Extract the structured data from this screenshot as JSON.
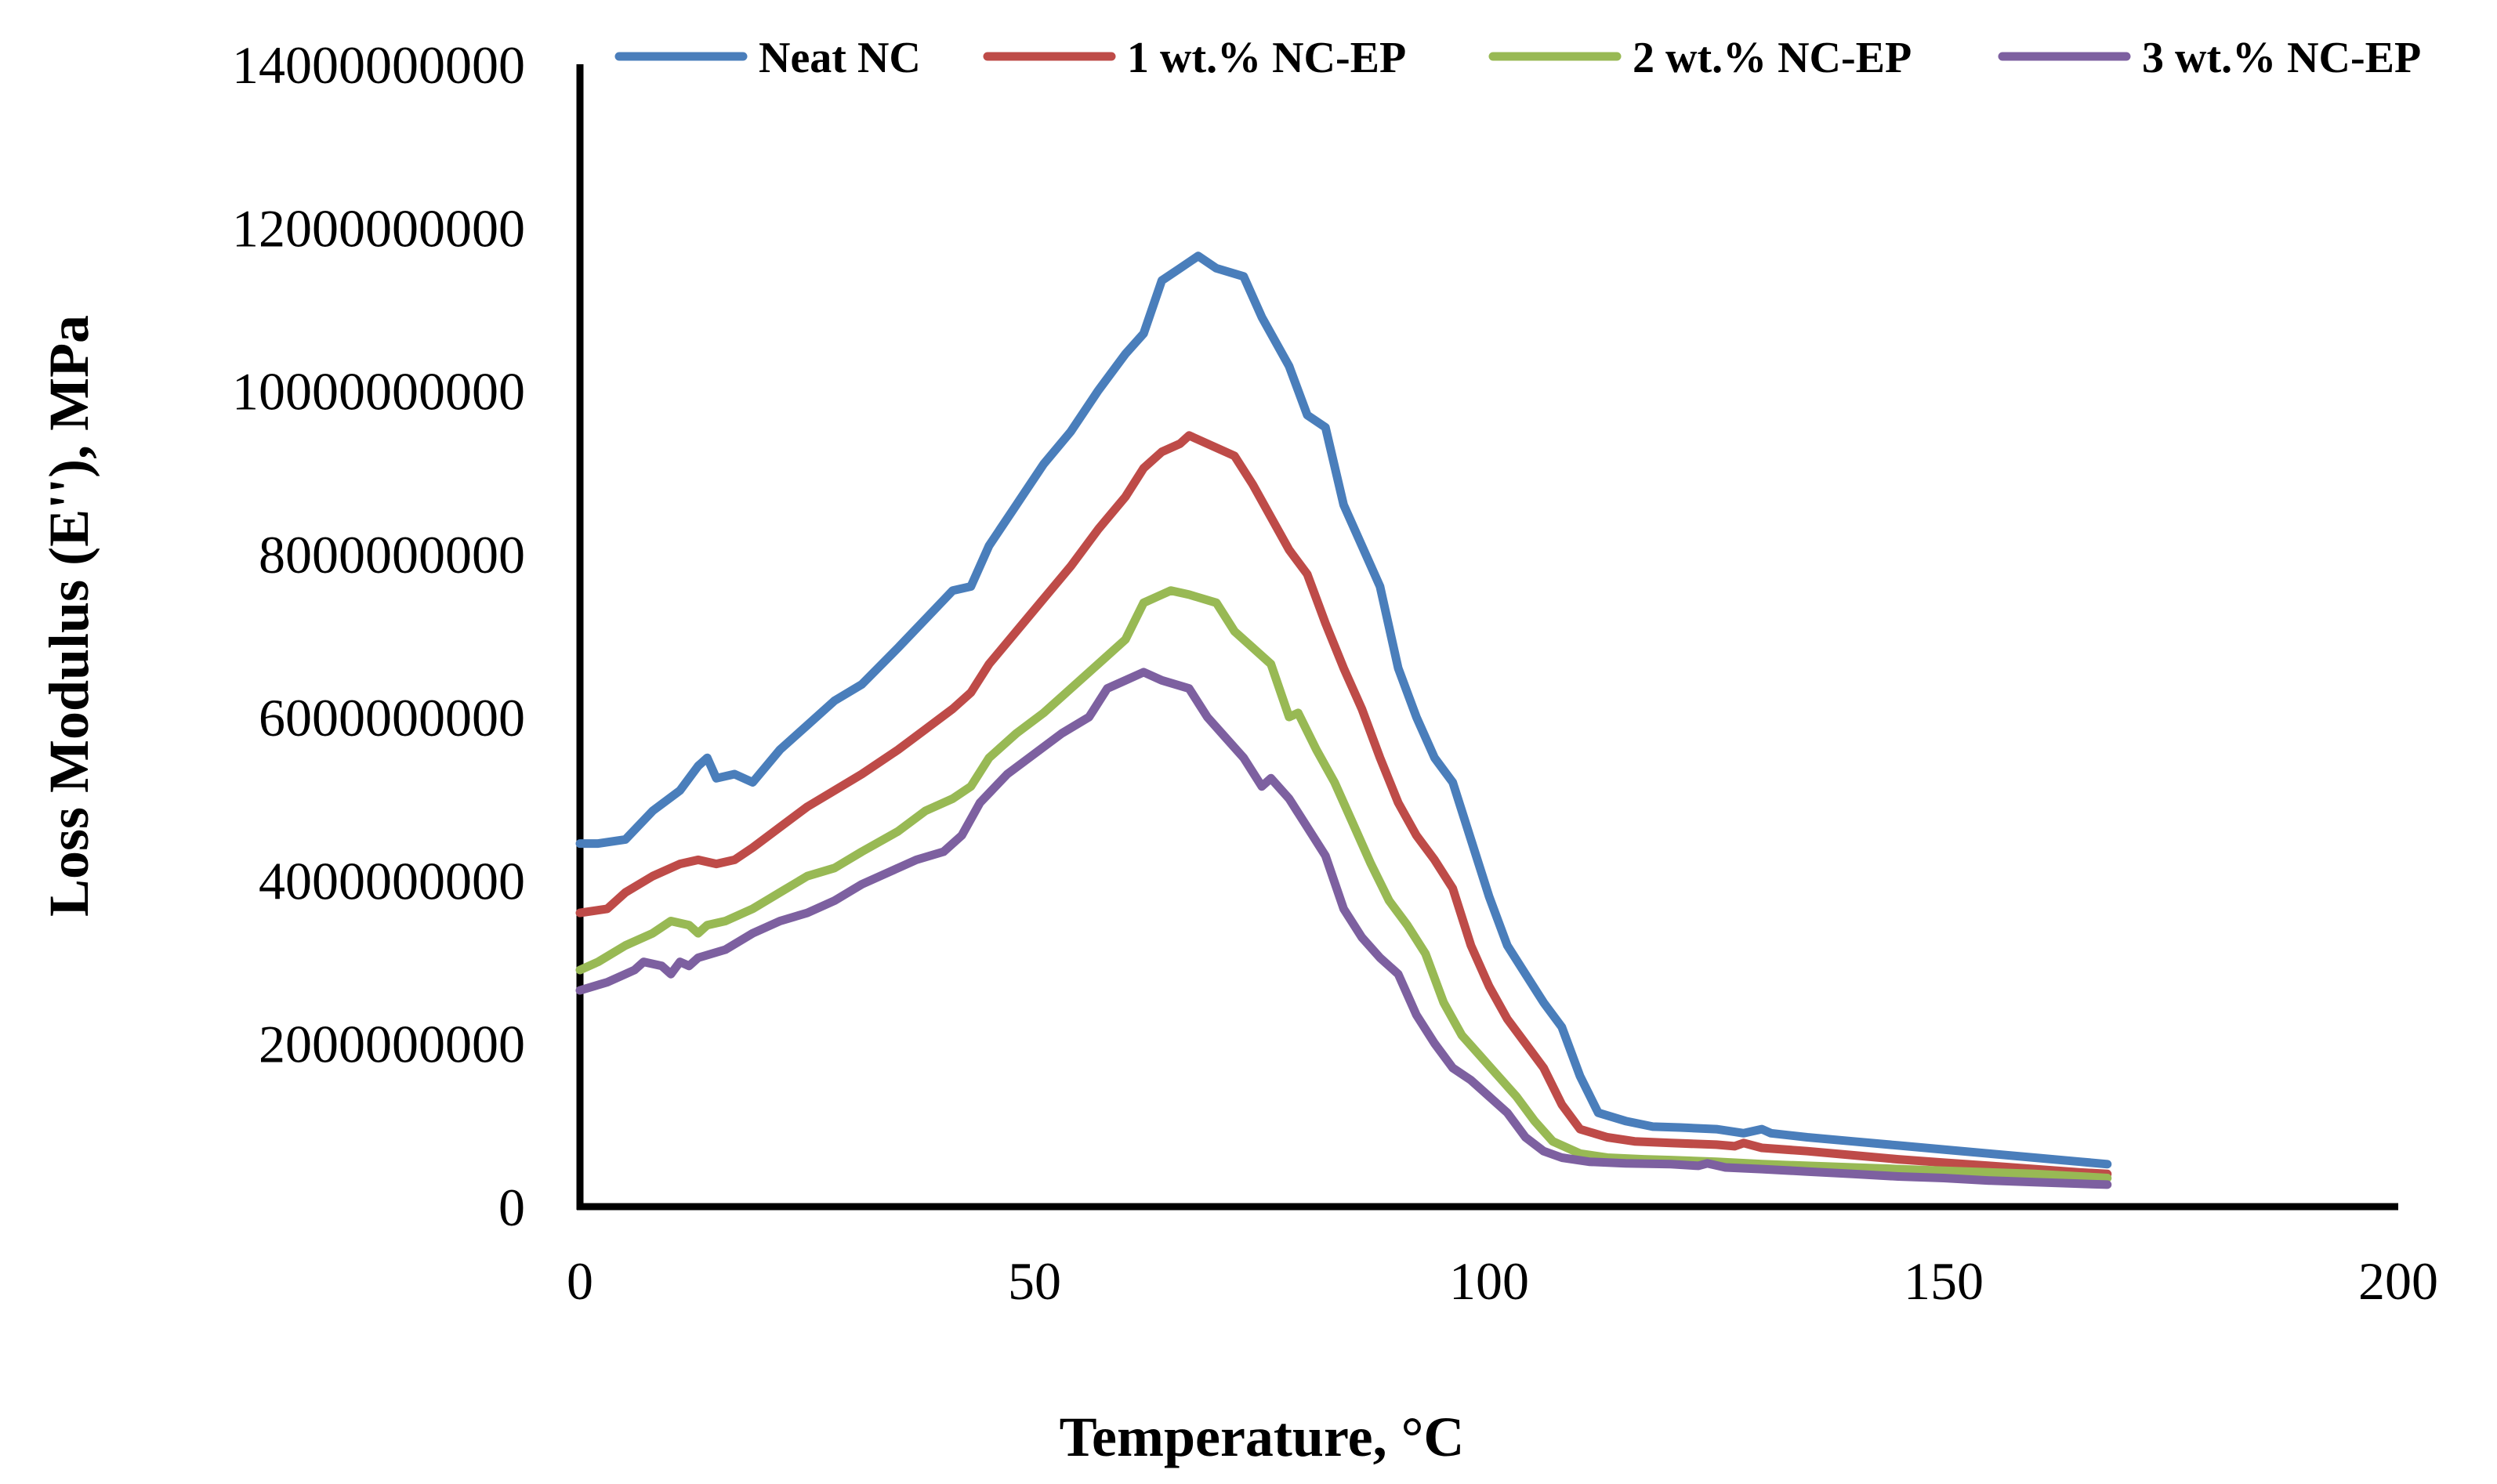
{
  "chart_data": {
    "type": "line",
    "title": "",
    "xlabel": "Temperature, °C",
    "ylabel": "Loss Modulus (E''), MPa",
    "xlim": [
      0,
      200
    ],
    "ylim": [
      0,
      14000000000
    ],
    "xticks": [
      "0",
      "50",
      "100",
      "150",
      "200"
    ],
    "yticks": [
      "0",
      "2000000000",
      "4000000000",
      "6000000000",
      "8000000000",
      "10000000000",
      "12000000000",
      "14000000000"
    ],
    "grid": false,
    "legend_position": "top",
    "series": [
      {
        "name": "Neat NC",
        "color": "#4a7ebb",
        "points": [
          [
            0,
            4450000000.0
          ],
          [
            2,
            4450000000.0
          ],
          [
            5,
            4500000000.0
          ],
          [
            8,
            4850000000.0
          ],
          [
            11,
            5100000000.0
          ],
          [
            13,
            5400000000.0
          ],
          [
            14,
            5500000000.0
          ],
          [
            15,
            5250000000.0
          ],
          [
            17,
            5300000000.0
          ],
          [
            19,
            5200000000.0
          ],
          [
            22,
            5600000000.0
          ],
          [
            25,
            5900000000.0
          ],
          [
            28,
            6200000000.0
          ],
          [
            31,
            6400000000.0
          ],
          [
            35,
            6850000000.0
          ],
          [
            38,
            7200000000.0
          ],
          [
            41,
            7550000000.0
          ],
          [
            43,
            7600000000.0
          ],
          [
            45,
            8100000000.0
          ],
          [
            48,
            8600000000.0
          ],
          [
            51,
            9100000000.0
          ],
          [
            54,
            9500000000.0
          ],
          [
            57,
            10000000000.0
          ],
          [
            60,
            10450000000.0
          ],
          [
            62,
            10700000000.0
          ],
          [
            64,
            11350000000.0
          ],
          [
            66,
            11500000000.0
          ],
          [
            68,
            11650000000.0
          ],
          [
            70,
            11500000000.0
          ],
          [
            73,
            11400000000.0
          ],
          [
            75,
            10900000000.0
          ],
          [
            78,
            10300000000.0
          ],
          [
            80,
            9700000000.0
          ],
          [
            82,
            9550000000.0
          ],
          [
            84,
            8600000000.0
          ],
          [
            86,
            8100000000.0
          ],
          [
            88,
            7600000000.0
          ],
          [
            90,
            6600000000.0
          ],
          [
            92,
            6000000000.0
          ],
          [
            94,
            5500000000.0
          ],
          [
            96,
            5200000000.0
          ],
          [
            98,
            4500000000.0
          ],
          [
            100,
            3800000000.0
          ],
          [
            102,
            3200000000.0
          ],
          [
            104,
            2850000000.0
          ],
          [
            106,
            2500000000.0
          ],
          [
            108,
            2200000000.0
          ],
          [
            110,
            1600000000.0
          ],
          [
            112,
            1150000000.0
          ],
          [
            115,
            1050000000.0
          ],
          [
            118,
            980000000.0
          ],
          [
            121,
            970000000.0
          ],
          [
            125,
            950000000.0
          ],
          [
            128,
            900000000.0
          ],
          [
            130,
            950000000.0
          ],
          [
            131,
            900000000.0
          ],
          [
            135,
            850000000.0
          ],
          [
            140,
            800000000.0
          ],
          [
            145,
            750000000.0
          ],
          [
            150,
            700000000.0
          ],
          [
            155,
            650000000.0
          ],
          [
            160,
            600000000.0
          ],
          [
            165,
            550000000.0
          ],
          [
            168,
            520000000.0
          ]
        ]
      },
      {
        "name": "1 wt.% NC-EP",
        "color": "#be4b48",
        "points": [
          [
            0,
            3600000000.0
          ],
          [
            3,
            3650000000.0
          ],
          [
            5,
            3850000000.0
          ],
          [
            8,
            4050000000.0
          ],
          [
            11,
            4200000000.0
          ],
          [
            13,
            4250000000.0
          ],
          [
            15,
            4200000000.0
          ],
          [
            17,
            4250000000.0
          ],
          [
            19,
            4400000000.0
          ],
          [
            22,
            4650000000.0
          ],
          [
            25,
            4900000000.0
          ],
          [
            28,
            5100000000.0
          ],
          [
            31,
            5300000000.0
          ],
          [
            35,
            5600000000.0
          ],
          [
            38,
            5850000000.0
          ],
          [
            41,
            6100000000.0
          ],
          [
            43,
            6300000000.0
          ],
          [
            45,
            6650000000.0
          ],
          [
            48,
            7050000000.0
          ],
          [
            51,
            7450000000.0
          ],
          [
            54,
            7850000000.0
          ],
          [
            57,
            8300000000.0
          ],
          [
            60,
            8700000000.0
          ],
          [
            62,
            9050000000.0
          ],
          [
            64,
            9250000000.0
          ],
          [
            66,
            9350000000.0
          ],
          [
            67,
            9450000000.0
          ],
          [
            69,
            9350000000.0
          ],
          [
            72,
            9200000000.0
          ],
          [
            74,
            8850000000.0
          ],
          [
            76,
            8450000000.0
          ],
          [
            78,
            8050000000.0
          ],
          [
            80,
            7750000000.0
          ],
          [
            82,
            7150000000.0
          ],
          [
            84,
            6600000000.0
          ],
          [
            86,
            6100000000.0
          ],
          [
            88,
            5500000000.0
          ],
          [
            90,
            4950000000.0
          ],
          [
            92,
            4550000000.0
          ],
          [
            94,
            4250000000.0
          ],
          [
            96,
            3900000000.0
          ],
          [
            98,
            3200000000.0
          ],
          [
            100,
            2700000000.0
          ],
          [
            102,
            2300000000.0
          ],
          [
            104,
            2000000000.0
          ],
          [
            106,
            1700000000.0
          ],
          [
            108,
            1250000000.0
          ],
          [
            110,
            950000000.0
          ],
          [
            113,
            850000000.0
          ],
          [
            116,
            800000000.0
          ],
          [
            120,
            780000000.0
          ],
          [
            125,
            760000000.0
          ],
          [
            127,
            740000000.0
          ],
          [
            128,
            780000000.0
          ],
          [
            130,
            720000000.0
          ],
          [
            135,
            680000000.0
          ],
          [
            140,
            630000000.0
          ],
          [
            145,
            580000000.0
          ],
          [
            150,
            540000000.0
          ],
          [
            155,
            500000000.0
          ],
          [
            160,
            460000000.0
          ],
          [
            165,
            420000000.0
          ],
          [
            168,
            400000000.0
          ]
        ]
      },
      {
        "name": "2 wt.% NC-EP",
        "color": "#98b954",
        "points": [
          [
            0,
            2900000000.0
          ],
          [
            2,
            3000000000.0
          ],
          [
            5,
            3200000000.0
          ],
          [
            8,
            3350000000.0
          ],
          [
            10,
            3500000000.0
          ],
          [
            12,
            3450000000.0
          ],
          [
            13,
            3350000000.0
          ],
          [
            14,
            3450000000.0
          ],
          [
            16,
            3500000000.0
          ],
          [
            19,
            3650000000.0
          ],
          [
            22,
            3850000000.0
          ],
          [
            25,
            4050000000.0
          ],
          [
            28,
            4150000000.0
          ],
          [
            31,
            4350000000.0
          ],
          [
            35,
            4600000000.0
          ],
          [
            38,
            4850000000.0
          ],
          [
            41,
            5000000000.0
          ],
          [
            43,
            5150000000.0
          ],
          [
            45,
            5500000000.0
          ],
          [
            48,
            5800000000.0
          ],
          [
            51,
            6050000000.0
          ],
          [
            54,
            6350000000.0
          ],
          [
            57,
            6650000000.0
          ],
          [
            60,
            6950000000.0
          ],
          [
            62,
            7400000000.0
          ],
          [
            64,
            7500000000.0
          ],
          [
            65,
            7550000000.0
          ],
          [
            67,
            7500000000.0
          ],
          [
            70,
            7400000000.0
          ],
          [
            72,
            7050000000.0
          ],
          [
            74,
            6850000000.0
          ],
          [
            76,
            6650000000.0
          ],
          [
            78,
            6000000000.0
          ],
          [
            79,
            6050000000.0
          ],
          [
            81,
            5600000000.0
          ],
          [
            83,
            5200000000.0
          ],
          [
            85,
            4700000000.0
          ],
          [
            87,
            4200000000.0
          ],
          [
            89,
            3750000000.0
          ],
          [
            91,
            3450000000.0
          ],
          [
            93,
            3100000000.0
          ],
          [
            95,
            2500000000.0
          ],
          [
            97,
            2100000000.0
          ],
          [
            99,
            1850000000.0
          ],
          [
            101,
            1600000000.0
          ],
          [
            103,
            1350000000.0
          ],
          [
            105,
            1050000000.0
          ],
          [
            107,
            800000000.0
          ],
          [
            110,
            650000000.0
          ],
          [
            113,
            600000000.0
          ],
          [
            117,
            580000000.0
          ],
          [
            120,
            570000000.0
          ],
          [
            125,
            550000000.0
          ],
          [
            130,
            520000000.0
          ],
          [
            135,
            500000000.0
          ],
          [
            140,
            480000000.0
          ],
          [
            145,
            460000000.0
          ],
          [
            150,
            440000000.0
          ],
          [
            155,
            420000000.0
          ],
          [
            160,
            400000000.0
          ],
          [
            165,
            370000000.0
          ],
          [
            168,
            350000000.0
          ]
        ]
      },
      {
        "name": "3 wt.% NC-EP",
        "color": "#7d60a0",
        "points": [
          [
            0,
            2650000000.0
          ],
          [
            3,
            2750000000.0
          ],
          [
            6,
            2900000000.0
          ],
          [
            7,
            3000000000.0
          ],
          [
            9,
            2950000000.0
          ],
          [
            10,
            2850000000.0
          ],
          [
            11,
            3000000000.0
          ],
          [
            12,
            2950000000.0
          ],
          [
            13,
            3050000000.0
          ],
          [
            16,
            3150000000.0
          ],
          [
            19,
            3350000000.0
          ],
          [
            22,
            3500000000.0
          ],
          [
            25,
            3600000000.0
          ],
          [
            28,
            3750000000.0
          ],
          [
            31,
            3950000000.0
          ],
          [
            34,
            4100000000.0
          ],
          [
            37,
            4250000000.0
          ],
          [
            40,
            4350000000.0
          ],
          [
            42,
            4550000000.0
          ],
          [
            44,
            4950000000.0
          ],
          [
            47,
            5300000000.0
          ],
          [
            50,
            5550000000.0
          ],
          [
            53,
            5800000000.0
          ],
          [
            56,
            6000000000.0
          ],
          [
            58,
            6350000000.0
          ],
          [
            60,
            6450000000.0
          ],
          [
            62,
            6550000000.0
          ],
          [
            64,
            6450000000.0
          ],
          [
            67,
            6350000000.0
          ],
          [
            69,
            6000000000.0
          ],
          [
            71,
            5750000000.0
          ],
          [
            73,
            5500000000.0
          ],
          [
            75,
            5150000000.0
          ],
          [
            76,
            5250000000.0
          ],
          [
            78,
            5000000000.0
          ],
          [
            80,
            4650000000.0
          ],
          [
            82,
            4300000000.0
          ],
          [
            84,
            3650000000.0
          ],
          [
            86,
            3300000000.0
          ],
          [
            88,
            3050000000.0
          ],
          [
            90,
            2850000000.0
          ],
          [
            92,
            2350000000.0
          ],
          [
            94,
            2000000000.0
          ],
          [
            96,
            1700000000.0
          ],
          [
            98,
            1550000000.0
          ],
          [
            100,
            1350000000.0
          ],
          [
            102,
            1150000000.0
          ],
          [
            104,
            850000000.0
          ],
          [
            106,
            680000000.0
          ],
          [
            108,
            600000000.0
          ],
          [
            111,
            550000000.0
          ],
          [
            115,
            530000000.0
          ],
          [
            120,
            520000000.0
          ],
          [
            123,
            500000000.0
          ],
          [
            124,
            530000000.0
          ],
          [
            126,
            480000000.0
          ],
          [
            130,
            460000000.0
          ],
          [
            135,
            430000000.0
          ],
          [
            140,
            400000000.0
          ],
          [
            145,
            370000000.0
          ],
          [
            150,
            350000000.0
          ],
          [
            155,
            320000000.0
          ],
          [
            160,
            300000000.0
          ],
          [
            165,
            280000000.0
          ],
          [
            168,
            270000000.0
          ]
        ]
      }
    ]
  }
}
